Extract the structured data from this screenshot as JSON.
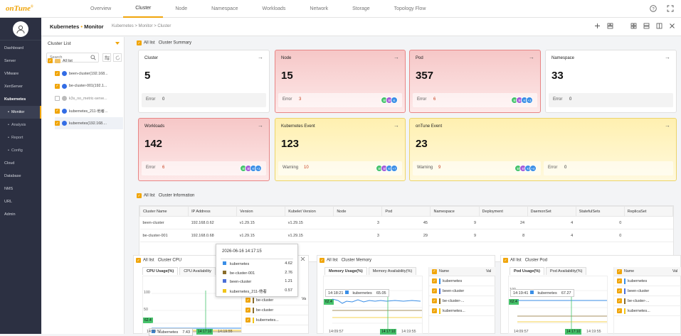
{
  "app": {
    "logo": "onTune",
    "logo_mark": "®"
  },
  "topnav": [
    "Overview",
    "Cluster",
    "Node",
    "Namespace",
    "Workloads",
    "Network",
    "Storage",
    "Topology Flow"
  ],
  "topnav_active": 1,
  "sidebar": {
    "items": [
      {
        "label": "Dashboard",
        "type": "main"
      },
      {
        "label": "Server",
        "type": "main"
      },
      {
        "label": "VMware",
        "type": "main"
      },
      {
        "label": "XenServer",
        "type": "main"
      },
      {
        "label": "Kubernetes",
        "type": "active"
      },
      {
        "label": "Monitor",
        "type": "subactive"
      },
      {
        "label": "Analysis",
        "type": "sub"
      },
      {
        "label": "Report",
        "type": "sub"
      },
      {
        "label": "Config",
        "type": "sub"
      },
      {
        "label": "Cloud",
        "type": "main"
      },
      {
        "label": "Database",
        "type": "main"
      },
      {
        "label": "NMS",
        "type": "main"
      },
      {
        "label": "URL",
        "type": "main"
      },
      {
        "label": "Admin",
        "type": "main"
      }
    ],
    "bullet": "•"
  },
  "header": {
    "title": "Kubernetes",
    "dot": "•",
    "title2": "Monitor",
    "breadcrumb": "Kubernetes  >  Monitor  >  Cluster"
  },
  "cluster_list": {
    "title": "Cluster List",
    "search_placeholder": "Search",
    "all": "All list",
    "items": [
      {
        "label": "been-cluster(192.168...",
        "on": true
      },
      {
        "label": "be-cluster-001(192.1...",
        "on": true
      },
      {
        "label": "k3s_no_metric-serve...",
        "on": false
      },
      {
        "label": "kubernetes_211-他者...",
        "on": true
      },
      {
        "label": "kubernetes(192.168....",
        "on": true
      }
    ]
  },
  "summary": {
    "tab1": "All list",
    "tab2": "Cluster Summary",
    "cards": [
      {
        "title": "Cluster",
        "value": "5",
        "foot_label": "Error",
        "foot_value": "0",
        "style": "",
        "badges": []
      },
      {
        "title": "Node",
        "value": "15",
        "foot_label": "Error",
        "foot_value": "3",
        "style": "red",
        "badges": [
          [
            "B",
            "#46c36b"
          ],
          [
            "B",
            "#a55bd8"
          ],
          [
            "K",
            "#3a8ee6"
          ]
        ]
      },
      {
        "title": "Pod",
        "value": "357",
        "foot_label": "Error",
        "foot_value": "6",
        "style": "red",
        "badges": [
          [
            "B",
            "#46c36b"
          ],
          [
            "B",
            "#a55bd8"
          ],
          [
            "K",
            "#3a8ee6"
          ],
          [
            "+3",
            "#3a8ee6"
          ]
        ]
      },
      {
        "title": "Namespace",
        "value": "33",
        "foot_label": "Error",
        "foot_value": "0",
        "style": "",
        "badges": []
      },
      {
        "title": "Workloads",
        "value": "142",
        "foot_label": "Error",
        "foot_value": "6",
        "style": "red",
        "badges": [
          [
            "B",
            "#46c36b"
          ],
          [
            "B",
            "#a55bd8"
          ],
          [
            "K",
            "#3a8ee6"
          ],
          [
            "+3",
            "#3a8ee6"
          ]
        ]
      },
      {
        "title": "Kubernetes Event",
        "value": "123",
        "foot_label": "Warning",
        "foot_value": "10",
        "style": "yel",
        "badges": [
          [
            "B",
            "#46c36b"
          ],
          [
            "B",
            "#a55bd8"
          ],
          [
            "K",
            "#3a8ee6"
          ],
          [
            "+7",
            "#3a8ee6"
          ]
        ]
      },
      {
        "title": "onTune Event",
        "value": "23",
        "foot_label": "Warning",
        "foot_value": "9",
        "foot2_label": "Error",
        "foot2_value": "0",
        "style": "yel",
        "badges": [
          [
            "B",
            "#46c36b"
          ],
          [
            "B",
            "#a55bd8"
          ],
          [
            "K",
            "#3a8ee6"
          ],
          [
            "+4",
            "#3a8ee6"
          ]
        ]
      }
    ]
  },
  "info": {
    "tab1": "All list",
    "tab2": "Cluster Information",
    "columns": [
      "Cluster Name",
      "IP Address",
      "Version",
      "Kubelet Version",
      "Node",
      "Pod",
      "Namespace",
      "Deployment",
      "DaemonSet",
      "StatefulSets",
      "ReplicaSet"
    ],
    "rows": [
      [
        "been-cluster",
        "192.168.0.62",
        "v1.29.15",
        "v1.29.15",
        "3",
        "45",
        "9",
        "24",
        "4",
        "0",
        ""
      ],
      [
        "be-cluster-001",
        "192.168.0.68",
        "v1.29.15",
        "v1.29.15",
        "3",
        "29",
        "9",
        "8",
        "4",
        "0",
        ""
      ]
    ]
  },
  "cpu": {
    "tab1": "All list",
    "tab2": "Cluster CPU",
    "sub1": "CPU Usage(%)",
    "sub2": "CPU Availability",
    "y_top": "100",
    "y_mid": "50",
    "mark": "62.4",
    "label_name": "kubernetes",
    "label_val": "7.43",
    "x1": "14:09:57",
    "x2": "14:17:10",
    "x3": "14:19:55",
    "legend": [
      "be-cluster",
      "be-cluster",
      "kubernetes..."
    ],
    "col": "Va"
  },
  "tooltip": {
    "time": "2026-06-16 14:17:15",
    "rows": [
      [
        "kubernetes",
        "4.62",
        "#3a8ee6"
      ],
      [
        "be-cluster-001",
        "2.76",
        "#8a6d2b"
      ],
      [
        "been-cluster",
        "1.21",
        "#4a6fd8"
      ],
      [
        "kubernetes_211-他者",
        "0.57",
        "#f0c419"
      ]
    ]
  },
  "mem": {
    "tab1": "All list",
    "tab2": "Cluster Memory",
    "sub1": "Memory Usage(%)",
    "sub2": "Memory Availability(%)",
    "time": "14:18:21",
    "label_name": "kubernetes",
    "label_val": "65.05",
    "mark": "62.4",
    "x1": "14:09:57",
    "x2": "14:17:10",
    "x3": "14:19:55",
    "col_name": "Name",
    "col_val": "Val",
    "legend": [
      "kubernetes",
      "been-cluster",
      "be-cluster-...",
      "kubernetes..."
    ]
  },
  "pod": {
    "tab1": "All list",
    "tab2": "Cluster Pod",
    "sub1": "Pod Usage(%)",
    "sub2": "Pod Availability(%)",
    "time": "14:19:41",
    "label_name": "kubernetes",
    "label_val": "67.27",
    "mark": "62.4",
    "y_top": "100",
    "x1": "14:09:57",
    "x2": "14:17:10",
    "x3": "14:19:55",
    "col_name": "Name",
    "col_val": "Val",
    "legend": [
      "kubernetes",
      "been-cluster",
      "be-cluster-...",
      "kubernetes..."
    ]
  }
}
